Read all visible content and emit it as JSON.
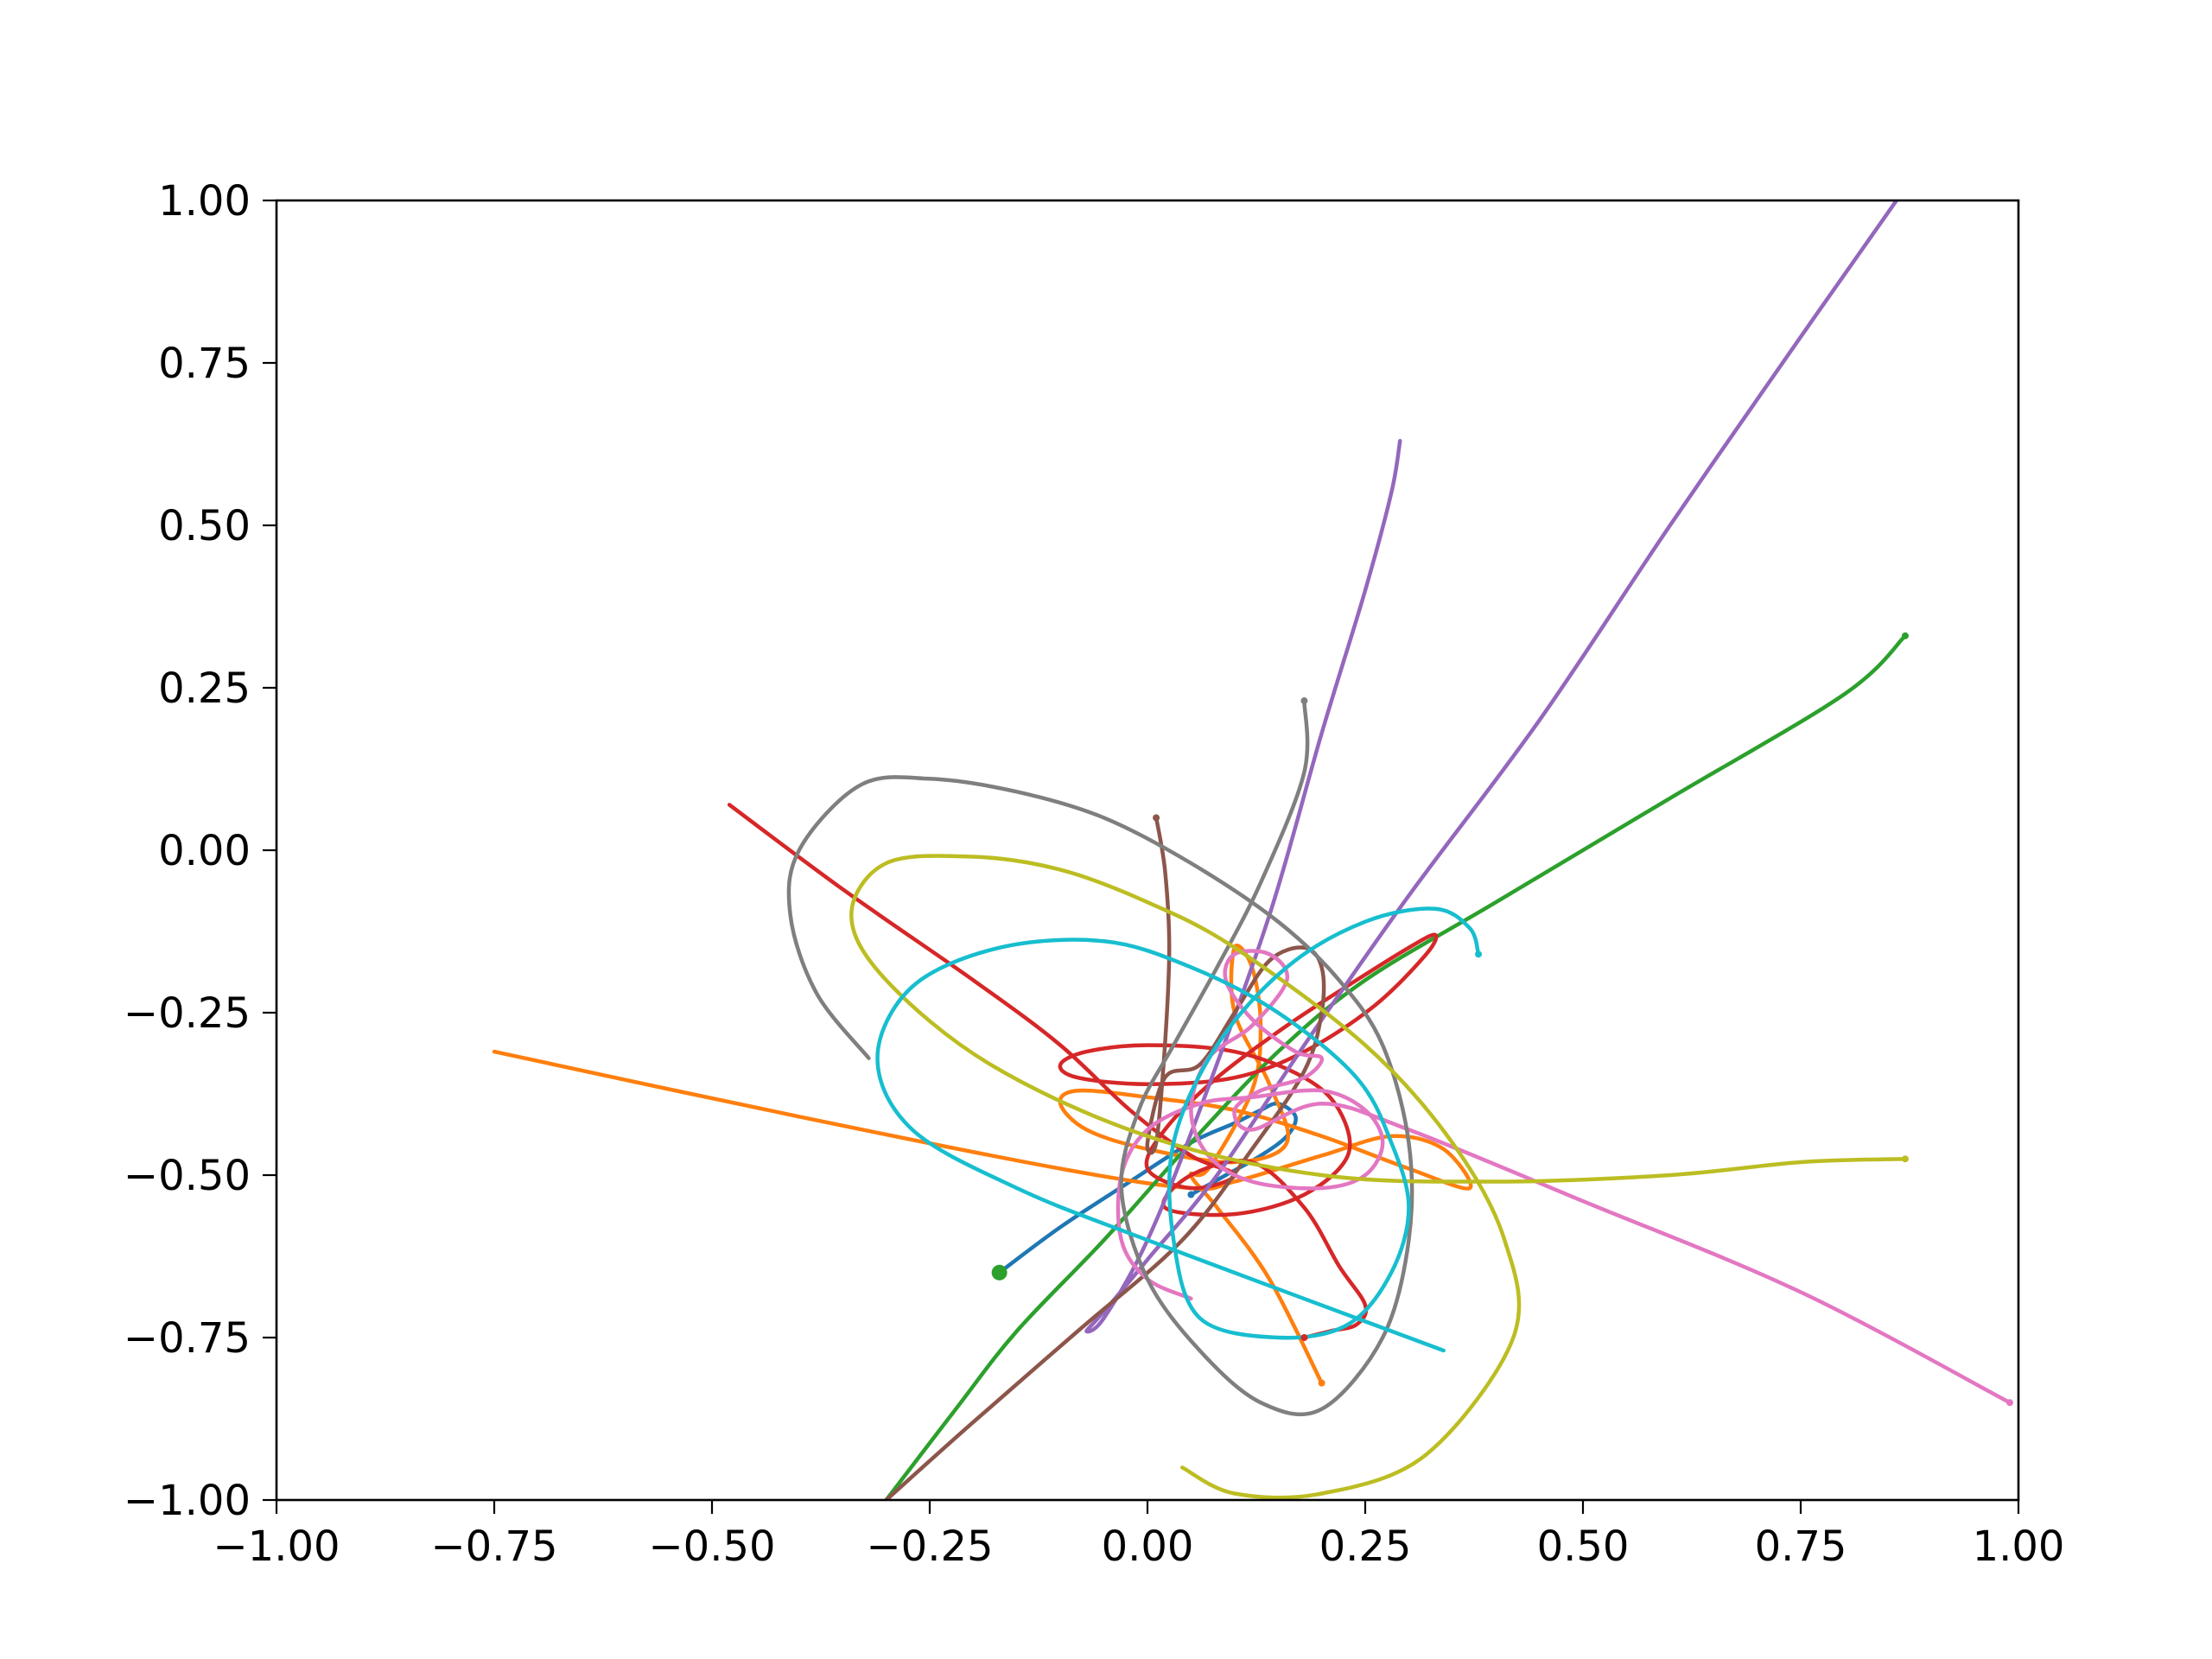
{
  "chart_data": {
    "type": "line",
    "title": "",
    "xlabel": "",
    "ylabel": "",
    "xlim": [
      -1.0,
      1.0
    ],
    "ylim": [
      -1.0,
      1.0
    ],
    "grid": false,
    "legend": "none",
    "x_ticks": [
      "−1.00",
      "−0.75",
      "−0.50",
      "−0.25",
      "0.00",
      "0.25",
      "0.50",
      "0.75",
      "1.00"
    ],
    "x_tick_values": [
      -1.0,
      -0.75,
      -0.5,
      -0.25,
      0.0,
      0.25,
      0.5,
      0.75,
      1.0
    ],
    "y_ticks": [
      "−1.00",
      "−0.75",
      "−0.50",
      "−0.25",
      "0.00",
      "0.25",
      "0.50",
      "0.75",
      "1.00"
    ],
    "y_tick_values": [
      -1.0,
      -0.75,
      -0.5,
      -0.25,
      0.0,
      0.25,
      0.5,
      0.75,
      1.0
    ],
    "central_point": {
      "x": -0.17,
      "y": -0.65,
      "color": "#2ca02c"
    },
    "series": [
      {
        "color": "#1f77b4",
        "points": [
          [
            -0.17,
            -0.65
          ],
          [
            -0.1,
            -0.58
          ],
          [
            -0.02,
            -0.51
          ],
          [
            0.05,
            -0.45
          ],
          [
            0.1,
            -0.42
          ],
          [
            0.13,
            -0.4
          ],
          [
            0.15,
            -0.39
          ],
          [
            0.17,
            -0.41
          ],
          [
            0.16,
            -0.44
          ],
          [
            0.13,
            -0.47
          ],
          [
            0.09,
            -0.5
          ],
          [
            0.05,
            -0.53
          ]
        ]
      },
      {
        "color": "#ff7f0e",
        "points": [
          [
            -0.75,
            -0.31
          ],
          [
            -0.4,
            -0.41
          ],
          [
            -0.1,
            -0.49
          ],
          [
            0.05,
            -0.52
          ],
          [
            0.1,
            -0.51
          ],
          [
            0.2,
            -0.47
          ],
          [
            0.28,
            -0.44
          ],
          [
            0.34,
            -0.46
          ],
          [
            0.37,
            -0.52
          ],
          [
            0.3,
            -0.49
          ],
          [
            0.2,
            -0.44
          ],
          [
            0.1,
            -0.4
          ],
          [
            0.0,
            -0.38
          ],
          [
            -0.08,
            -0.37
          ],
          [
            -0.1,
            -0.39
          ],
          [
            -0.07,
            -0.43
          ],
          [
            0.0,
            -0.46
          ],
          [
            0.1,
            -0.48
          ],
          [
            0.16,
            -0.45
          ],
          [
            0.14,
            -0.36
          ],
          [
            0.1,
            -0.25
          ],
          [
            0.1,
            -0.15
          ],
          [
            0.12,
            -0.18
          ],
          [
            0.13,
            -0.27
          ],
          [
            0.12,
            -0.37
          ],
          [
            0.07,
            -0.49
          ],
          [
            0.05,
            -0.5
          ],
          [
            0.08,
            -0.55
          ],
          [
            0.14,
            -0.66
          ],
          [
            0.2,
            -0.82
          ]
        ]
      },
      {
        "color": "#2ca02c",
        "points": [
          [
            -0.3,
            -1.0
          ],
          [
            -0.22,
            -0.86
          ],
          [
            -0.15,
            -0.74
          ],
          [
            -0.05,
            -0.6
          ],
          [
            0.05,
            -0.45
          ],
          [
            0.15,
            -0.31
          ],
          [
            0.25,
            -0.2
          ],
          [
            0.4,
            -0.08
          ],
          [
            0.6,
            0.08
          ],
          [
            0.8,
            0.24
          ],
          [
            0.87,
            0.33
          ]
        ]
      },
      {
        "color": "#d62728",
        "points": [
          [
            -0.48,
            0.07
          ],
          [
            -0.35,
            -0.06
          ],
          [
            -0.2,
            -0.2
          ],
          [
            -0.1,
            -0.3
          ],
          [
            -0.02,
            -0.4
          ],
          [
            0.05,
            -0.47
          ],
          [
            0.1,
            -0.5
          ],
          [
            0.05,
            -0.52
          ],
          [
            0.0,
            -0.49
          ],
          [
            0.02,
            -0.43
          ],
          [
            0.08,
            -0.35
          ],
          [
            0.16,
            -0.27
          ],
          [
            0.24,
            -0.2
          ],
          [
            0.3,
            -0.15
          ],
          [
            0.33,
            -0.13
          ],
          [
            0.32,
            -0.16
          ],
          [
            0.26,
            -0.24
          ],
          [
            0.18,
            -0.31
          ],
          [
            0.1,
            -0.35
          ],
          [
            0.0,
            -0.36
          ],
          [
            -0.08,
            -0.35
          ],
          [
            -0.1,
            -0.33
          ],
          [
            -0.07,
            -0.31
          ],
          [
            0.0,
            -0.3
          ],
          [
            0.1,
            -0.31
          ],
          [
            0.18,
            -0.35
          ],
          [
            0.22,
            -0.4
          ],
          [
            0.23,
            -0.47
          ],
          [
            0.18,
            -0.53
          ],
          [
            0.1,
            -0.56
          ],
          [
            0.02,
            -0.55
          ],
          [
            0.05,
            -0.5
          ],
          [
            0.12,
            -0.48
          ],
          [
            0.18,
            -0.55
          ],
          [
            0.22,
            -0.64
          ],
          [
            0.25,
            -0.7
          ],
          [
            0.24,
            -0.73
          ],
          [
            0.21,
            -0.74
          ],
          [
            0.18,
            -0.75
          ]
        ]
      },
      {
        "color": "#9467bd",
        "points": [
          [
            0.29,
            0.63
          ],
          [
            0.28,
            0.55
          ],
          [
            0.25,
            0.4
          ],
          [
            0.2,
            0.18
          ],
          [
            0.14,
            -0.1
          ],
          [
            0.06,
            -0.4
          ],
          [
            0.0,
            -0.6
          ],
          [
            -0.05,
            -0.72
          ],
          [
            -0.07,
            -0.74
          ],
          [
            -0.05,
            -0.71
          ],
          [
            0.0,
            -0.63
          ],
          [
            0.08,
            -0.5
          ],
          [
            0.18,
            -0.3
          ],
          [
            0.3,
            -0.07
          ],
          [
            0.45,
            0.2
          ],
          [
            0.6,
            0.5
          ],
          [
            0.75,
            0.79
          ],
          [
            0.86,
            1.0
          ]
        ]
      },
      {
        "color": "#8c564b",
        "points": [
          [
            -0.3,
            -1.0
          ],
          [
            -0.2,
            -0.88
          ],
          [
            -0.08,
            -0.74
          ],
          [
            0.04,
            -0.6
          ],
          [
            0.12,
            -0.46
          ],
          [
            0.18,
            -0.34
          ],
          [
            0.2,
            -0.25
          ],
          [
            0.2,
            -0.18
          ],
          [
            0.18,
            -0.15
          ],
          [
            0.14,
            -0.17
          ],
          [
            0.1,
            -0.25
          ],
          [
            0.06,
            -0.33
          ],
          [
            0.02,
            -0.35
          ],
          [
            0.0,
            -0.45
          ],
          [
            0.01,
            -0.45
          ],
          [
            0.02,
            -0.3
          ],
          [
            0.025,
            -0.15
          ],
          [
            0.02,
            -0.03
          ],
          [
            0.01,
            0.05
          ]
        ]
      },
      {
        "color": "#e377c2",
        "points": [
          [
            0.05,
            -0.69
          ],
          [
            0.0,
            -0.66
          ],
          [
            -0.03,
            -0.6
          ],
          [
            -0.03,
            -0.5
          ],
          [
            0.0,
            -0.43
          ],
          [
            0.06,
            -0.39
          ],
          [
            0.12,
            -0.38
          ],
          [
            0.2,
            -0.37
          ],
          [
            0.25,
            -0.4
          ],
          [
            0.27,
            -0.45
          ],
          [
            0.25,
            -0.5
          ],
          [
            0.2,
            -0.52
          ],
          [
            0.12,
            -0.51
          ],
          [
            0.07,
            -0.47
          ],
          [
            0.05,
            -0.4
          ],
          [
            0.07,
            -0.32
          ],
          [
            0.12,
            -0.27
          ],
          [
            0.16,
            -0.2
          ],
          [
            0.14,
            -0.16
          ],
          [
            0.1,
            -0.16
          ],
          [
            0.09,
            -0.2
          ],
          [
            0.12,
            -0.26
          ],
          [
            0.17,
            -0.31
          ],
          [
            0.2,
            -0.32
          ],
          [
            0.18,
            -0.35
          ],
          [
            0.13,
            -0.37
          ],
          [
            0.1,
            -0.4
          ],
          [
            0.12,
            -0.43
          ],
          [
            0.2,
            -0.39
          ],
          [
            0.3,
            -0.43
          ],
          [
            0.5,
            -0.54
          ],
          [
            0.75,
            -0.68
          ],
          [
            0.99,
            -0.85
          ]
        ]
      },
      {
        "color": "#7f7f7f",
        "points": [
          [
            -0.32,
            -0.32
          ],
          [
            -0.38,
            -0.22
          ],
          [
            -0.41,
            -0.1
          ],
          [
            -0.4,
            0.0
          ],
          [
            -0.33,
            0.1
          ],
          [
            -0.25,
            0.11
          ],
          [
            -0.15,
            0.09
          ],
          [
            -0.05,
            0.05
          ],
          [
            0.05,
            -0.02
          ],
          [
            0.15,
            -0.11
          ],
          [
            0.22,
            -0.2
          ],
          [
            0.27,
            -0.3
          ],
          [
            0.3,
            -0.45
          ],
          [
            0.3,
            -0.6
          ],
          [
            0.27,
            -0.75
          ],
          [
            0.2,
            -0.86
          ],
          [
            0.13,
            -0.85
          ],
          [
            0.06,
            -0.77
          ],
          [
            0.0,
            -0.66
          ],
          [
            -0.03,
            -0.52
          ],
          [
            -0.01,
            -0.4
          ],
          [
            0.03,
            -0.3
          ],
          [
            0.08,
            -0.18
          ],
          [
            0.13,
            -0.05
          ],
          [
            0.18,
            0.12
          ],
          [
            0.18,
            0.23
          ]
        ]
      },
      {
        "color": "#bcbd22",
        "points": [
          [
            0.04,
            -0.95
          ],
          [
            0.1,
            -0.99
          ],
          [
            0.2,
            -0.99
          ],
          [
            0.32,
            -0.93
          ],
          [
            0.42,
            -0.75
          ],
          [
            0.41,
            -0.6
          ],
          [
            0.35,
            -0.45
          ],
          [
            0.25,
            -0.3
          ],
          [
            0.1,
            -0.15
          ],
          [
            0.0,
            -0.08
          ],
          [
            -0.1,
            -0.03
          ],
          [
            -0.2,
            -0.01
          ],
          [
            -0.3,
            -0.02
          ],
          [
            -0.34,
            -0.1
          ],
          [
            -0.3,
            -0.2
          ],
          [
            -0.18,
            -0.33
          ],
          [
            0.0,
            -0.44
          ],
          [
            0.2,
            -0.5
          ],
          [
            0.4,
            -0.51
          ],
          [
            0.6,
            -0.5
          ],
          [
            0.75,
            -0.48
          ],
          [
            0.87,
            -0.475
          ]
        ]
      },
      {
        "color": "#17becf",
        "points": [
          [
            0.34,
            -0.77
          ],
          [
            0.0,
            -0.6
          ],
          [
            -0.15,
            -0.52
          ],
          [
            -0.27,
            -0.43
          ],
          [
            -0.31,
            -0.32
          ],
          [
            -0.27,
            -0.21
          ],
          [
            -0.17,
            -0.15
          ],
          [
            -0.05,
            -0.14
          ],
          [
            0.05,
            -0.18
          ],
          [
            0.15,
            -0.25
          ],
          [
            0.24,
            -0.35
          ],
          [
            0.28,
            -0.45
          ],
          [
            0.3,
            -0.55
          ],
          [
            0.28,
            -0.65
          ],
          [
            0.23,
            -0.73
          ],
          [
            0.15,
            -0.75
          ],
          [
            0.06,
            -0.72
          ],
          [
            0.03,
            -0.6
          ],
          [
            0.03,
            -0.45
          ],
          [
            0.08,
            -0.3
          ],
          [
            0.16,
            -0.18
          ],
          [
            0.25,
            -0.11
          ],
          [
            0.33,
            -0.09
          ],
          [
            0.37,
            -0.12
          ],
          [
            0.38,
            -0.16
          ]
        ]
      }
    ]
  }
}
